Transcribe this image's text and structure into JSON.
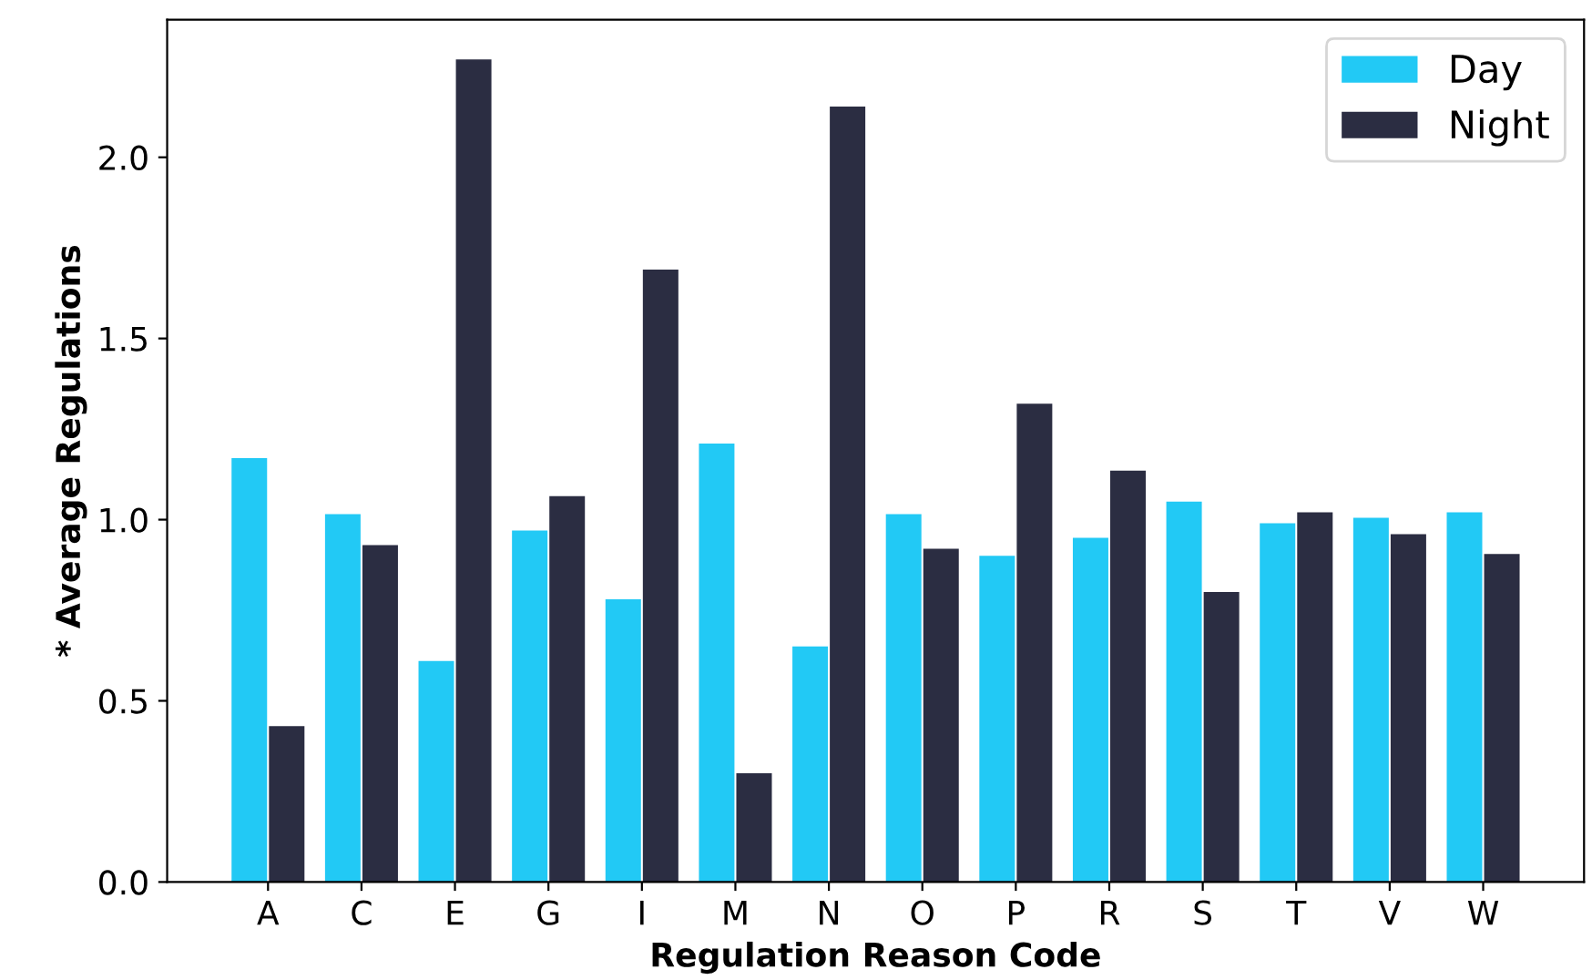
{
  "chart_data": {
    "type": "bar",
    "xlabel": "Regulation Reason Code",
    "ylabel": "* Average Regulations",
    "categories": [
      "A",
      "C",
      "E",
      "G",
      "I",
      "M",
      "N",
      "O",
      "P",
      "R",
      "S",
      "T",
      "V",
      "W"
    ],
    "series": [
      {
        "name": "Day",
        "color": "#22c9f5",
        "values": [
          1.17,
          1.015,
          0.61,
          0.97,
          0.78,
          1.21,
          0.65,
          1.015,
          0.9,
          0.95,
          1.05,
          0.99,
          1.005,
          1.02
        ]
      },
      {
        "name": "Night",
        "color": "#2b2d42",
        "values": [
          0.43,
          0.93,
          2.27,
          1.065,
          1.69,
          0.3,
          2.14,
          0.92,
          1.32,
          1.135,
          0.8,
          1.02,
          0.96,
          0.905
        ]
      }
    ],
    "ylim": [
      0,
      2.38
    ],
    "yticks": [
      {
        "value": 0,
        "label": "0.0"
      },
      {
        "value": 0.5,
        "label": "0.5"
      },
      {
        "value": 1,
        "label": "1.0"
      },
      {
        "value": 1.5,
        "label": "1.5"
      },
      {
        "value": 2,
        "label": "2.0"
      }
    ],
    "grid": false,
    "legend": "top right"
  }
}
